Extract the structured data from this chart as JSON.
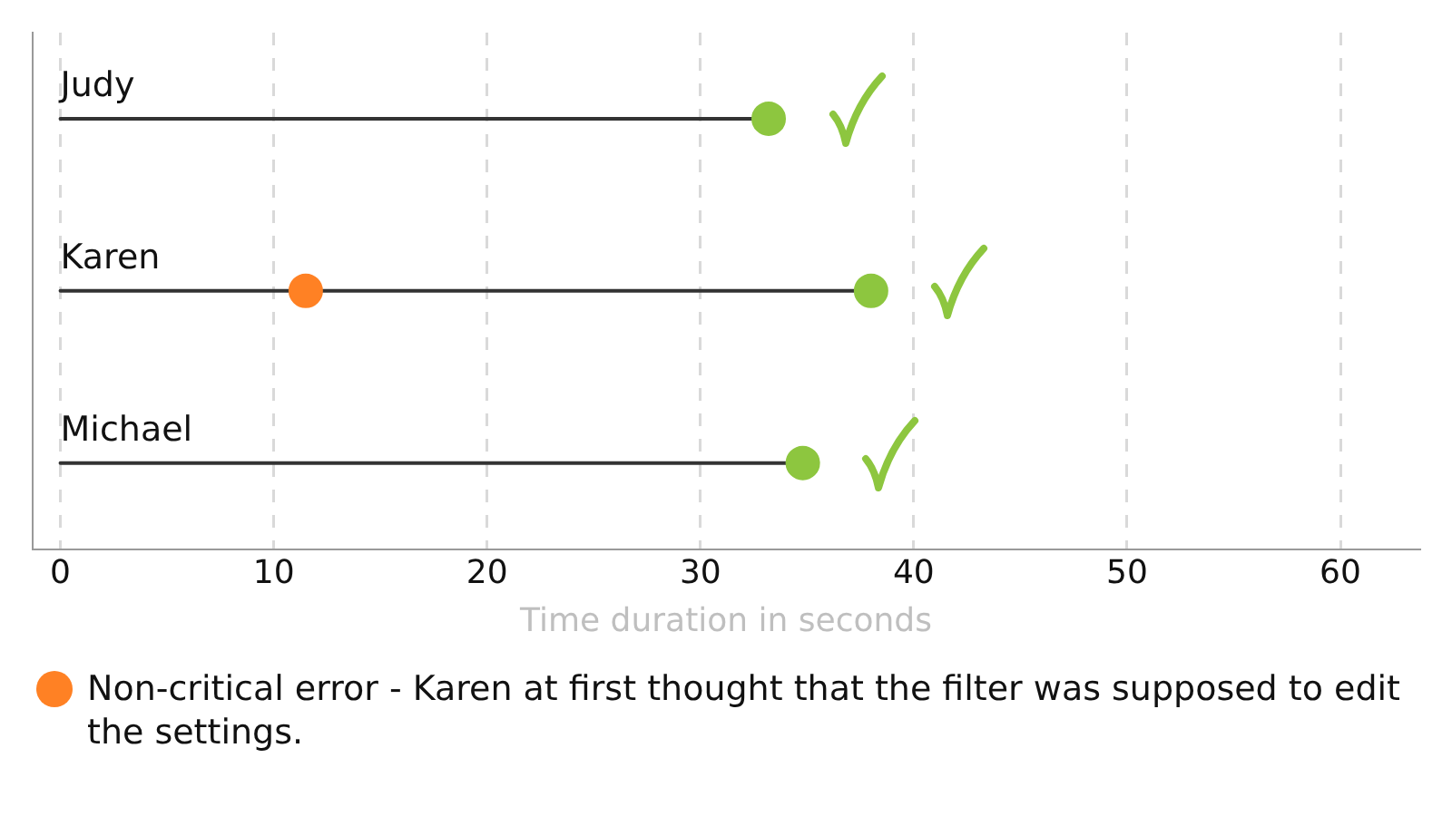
{
  "chart_data": {
    "type": "lollipop",
    "orientation": "horizontal",
    "xlabel": "Time duration in seconds",
    "categories": [
      "Judy",
      "Karen",
      "Michael"
    ],
    "series": [
      {
        "color": "#8dc63f",
        "values": [
          33.2,
          38,
          34.8
        ]
      },
      {
        "name": "Non-critical error - Karen at first thought that the filter was supposed to edit the settings.",
        "color": "#ff8124",
        "values": [
          null,
          11.5,
          null
        ]
      }
    ],
    "xlim": [
      -1.3,
      63.7
    ],
    "xticks": [
      0,
      10,
      20,
      30,
      40,
      50,
      60
    ],
    "grid": "x",
    "legend": "bottom",
    "marker": "circle"
  }
}
